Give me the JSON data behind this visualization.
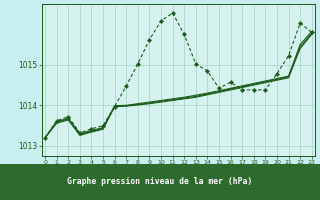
{
  "title": "Graphe pression niveau de la mer (hPa)",
  "bg_color": "#c8eef0",
  "plot_bg": "#d5f2ee",
  "footer_bg": "#2d6a2d",
  "line_color": "#1a5c1a",
  "grid_color": "#99ccbb",
  "xlim": [
    -0.3,
    23.3
  ],
  "ylim": [
    1012.75,
    1016.5
  ],
  "ytick_vals": [
    1013,
    1014,
    1015
  ],
  "xtick_vals": [
    0,
    1,
    2,
    3,
    4,
    5,
    6,
    7,
    8,
    9,
    10,
    11,
    12,
    13,
    14,
    15,
    16,
    17,
    18,
    19,
    20,
    21,
    22,
    23
  ],
  "s1_y": [
    1013.2,
    1013.62,
    1013.72,
    1013.32,
    1013.42,
    1013.5,
    1013.97,
    1014.48,
    1015.02,
    1015.62,
    1016.08,
    1016.28,
    1015.75,
    1015.02,
    1014.85,
    1014.42,
    1014.57,
    1014.38,
    1014.38,
    1014.38,
    1014.78,
    1015.22,
    1016.03,
    1015.8
  ],
  "s2_y": [
    1013.2,
    1013.6,
    1013.68,
    1013.3,
    1013.38,
    1013.45,
    1013.99,
    1014.0,
    1014.04,
    1014.08,
    1014.12,
    1014.16,
    1014.2,
    1014.25,
    1014.3,
    1014.36,
    1014.42,
    1014.48,
    1014.54,
    1014.6,
    1014.66,
    1014.72,
    1015.5,
    1015.82
  ],
  "s3_y": [
    1013.2,
    1013.58,
    1013.66,
    1013.28,
    1013.36,
    1013.43,
    1013.98,
    1013.99,
    1014.02,
    1014.06,
    1014.1,
    1014.14,
    1014.18,
    1014.22,
    1014.28,
    1014.34,
    1014.4,
    1014.46,
    1014.52,
    1014.58,
    1014.64,
    1014.7,
    1015.44,
    1015.78
  ],
  "s4_y": [
    1013.2,
    1013.56,
    1013.64,
    1013.26,
    1013.34,
    1013.41,
    1013.97,
    1013.98,
    1014.01,
    1014.04,
    1014.08,
    1014.12,
    1014.16,
    1014.2,
    1014.26,
    1014.32,
    1014.38,
    1014.44,
    1014.5,
    1014.56,
    1014.62,
    1014.68,
    1015.4,
    1015.75
  ]
}
